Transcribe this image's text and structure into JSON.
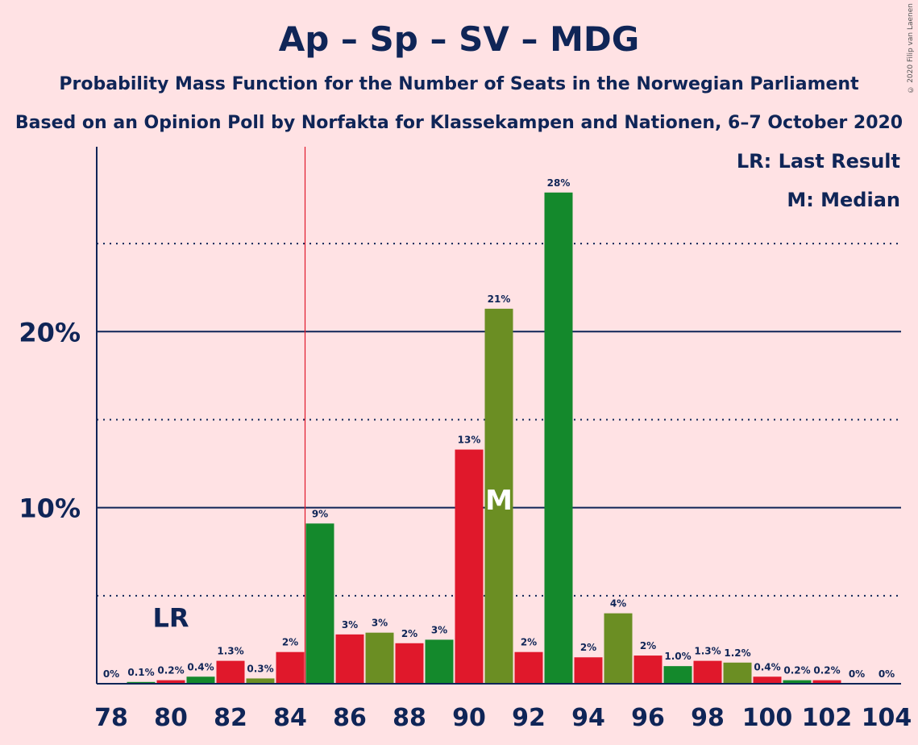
{
  "title": "Ap – Sp – SV – MDG",
  "subtitle1": "Probability Mass Function for the Number of Seats in the Norwegian Parliament",
  "subtitle2": "Based on an Opinion Poll by Norfakta for Klassekampen and Nationen, 6–7 October 2020",
  "copyright": "© 2020 Filip van Laenen",
  "legend": {
    "lr": "LR: Last Result",
    "m": "M: Median"
  },
  "markers": {
    "lr_text": "LR",
    "lr_seat": 80,
    "m_text": "M",
    "m_seat": 91,
    "majority_line_seat": 84.5
  },
  "colors": {
    "background": "#FFE2E4",
    "text": "#0F2557",
    "red": "#E0182B",
    "green": "#14892C",
    "olive": "#6B8E23",
    "majority_line": "#E0182B"
  },
  "chart_data": {
    "type": "bar",
    "x": [
      78,
      79,
      80,
      81,
      82,
      83,
      84,
      85,
      86,
      87,
      88,
      89,
      90,
      91,
      92,
      93,
      94,
      95,
      96,
      97,
      98,
      99,
      100,
      101,
      102,
      103,
      104
    ],
    "values": [
      0,
      0.1,
      0.2,
      0.4,
      1.3,
      0.3,
      1.8,
      9.1,
      2.8,
      2.9,
      2.3,
      2.5,
      13.3,
      21.3,
      1.8,
      27.9,
      1.5,
      4.0,
      1.6,
      1.0,
      1.3,
      1.2,
      0.4,
      0.2,
      0.2,
      0,
      0
    ],
    "labels": [
      "0%",
      "0.1%",
      "0.2%",
      "0.4%",
      "1.3%",
      "0.3%",
      "2%",
      "9%",
      "3%",
      "3%",
      "2%",
      "3%",
      "13%",
      "21%",
      "2%",
      "28%",
      "2%",
      "4%",
      "2%",
      "1.0%",
      "1.3%",
      "1.2%",
      "0.4%",
      "0.2%",
      "0.2%",
      "0%",
      "0%"
    ],
    "bar_colors": [
      "#E0182B",
      "#14892C",
      "#E0182B",
      "#14892C",
      "#E0182B",
      "#6B8E23",
      "#E0182B",
      "#14892C",
      "#E0182B",
      "#6B8E23",
      "#E0182B",
      "#14892C",
      "#E0182B",
      "#6B8E23",
      "#E0182B",
      "#14892C",
      "#E0182B",
      "#6B8E23",
      "#E0182B",
      "#14892C",
      "#E0182B",
      "#6B8E23",
      "#E0182B",
      "#14892C",
      "#E0182B",
      "#14892C",
      "#E0182B"
    ],
    "x_tick_labels": [
      "78",
      "80",
      "82",
      "84",
      "86",
      "88",
      "90",
      "92",
      "94",
      "96",
      "98",
      "100",
      "102",
      "104"
    ],
    "y_ticks": [
      10,
      20
    ],
    "y_tick_labels": [
      "10%",
      "20%"
    ],
    "y_minor_ticks": [
      5,
      15,
      25
    ],
    "ylim": [
      0,
      30.5
    ],
    "grid": true
  }
}
